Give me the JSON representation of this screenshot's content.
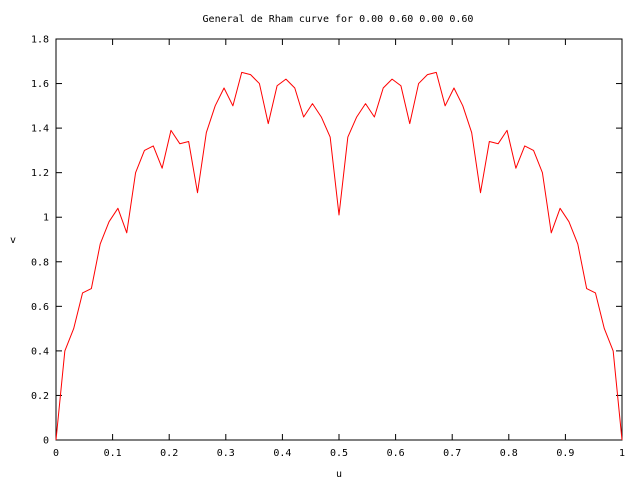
{
  "chart_data": {
    "type": "line",
    "title": "General de Rham curve for 0.00 0.60 0.00 0.60",
    "xlabel": "u",
    "ylabel": "v",
    "xlim": [
      0,
      1
    ],
    "ylim": [
      0,
      1.8
    ],
    "x_ticks": [
      "0",
      "0.1",
      "0.2",
      "0.3",
      "0.4",
      "0.5",
      "0.6",
      "0.7",
      "0.8",
      "0.9",
      "1"
    ],
    "y_ticks": [
      "0",
      "0.2",
      "0.4",
      "0.6",
      "0.8",
      "1",
      "1.2",
      "1.4",
      "1.6",
      "1.8"
    ],
    "grid": false,
    "legend": "none",
    "series": [
      {
        "color": "#ff0000",
        "x": [
          0,
          0.015625,
          0.03125,
          0.046875,
          0.0625,
          0.078125,
          0.09375,
          0.109375,
          0.125,
          0.140625,
          0.15625,
          0.171875,
          0.1875,
          0.203125,
          0.21875,
          0.234375,
          0.25,
          0.265625,
          0.28125,
          0.296875,
          0.3125,
          0.328125,
          0.34375,
          0.359375,
          0.375,
          0.390625,
          0.40625,
          0.421875,
          0.4375,
          0.453125,
          0.46875,
          0.484375,
          0.5,
          0.515625,
          0.53125,
          0.546875,
          0.5625,
          0.578125,
          0.59375,
          0.609375,
          0.625,
          0.640625,
          0.65625,
          0.671875,
          0.6875,
          0.703125,
          0.71875,
          0.734375,
          0.75,
          0.765625,
          0.78125,
          0.796875,
          0.8125,
          0.828125,
          0.84375,
          0.859375,
          0.875,
          0.890625,
          0.90625,
          0.921875,
          0.9375,
          0.953125,
          0.96875,
          0.984375,
          1
        ],
        "y": [
          0,
          0.4,
          0.5,
          0.66,
          0.68,
          0.88,
          0.98,
          1.04,
          0.93,
          1.2,
          1.3,
          1.32,
          1.22,
          1.39,
          1.33,
          1.34,
          1.11,
          1.38,
          1.5,
          1.58,
          1.5,
          1.65,
          1.64,
          1.6,
          1.42,
          1.59,
          1.62,
          1.58,
          1.45,
          1.51,
          1.45,
          1.36,
          1.01,
          1.36,
          1.45,
          1.51,
          1.45,
          1.58,
          1.62,
          1.59,
          1.42,
          1.6,
          1.64,
          1.65,
          1.5,
          1.58,
          1.5,
          1.38,
          1.11,
          1.34,
          1.33,
          1.39,
          1.22,
          1.32,
          1.3,
          1.2,
          0.93,
          1.04,
          0.98,
          0.88,
          0.68,
          0.66,
          0.5,
          0.4,
          0
        ]
      }
    ]
  }
}
